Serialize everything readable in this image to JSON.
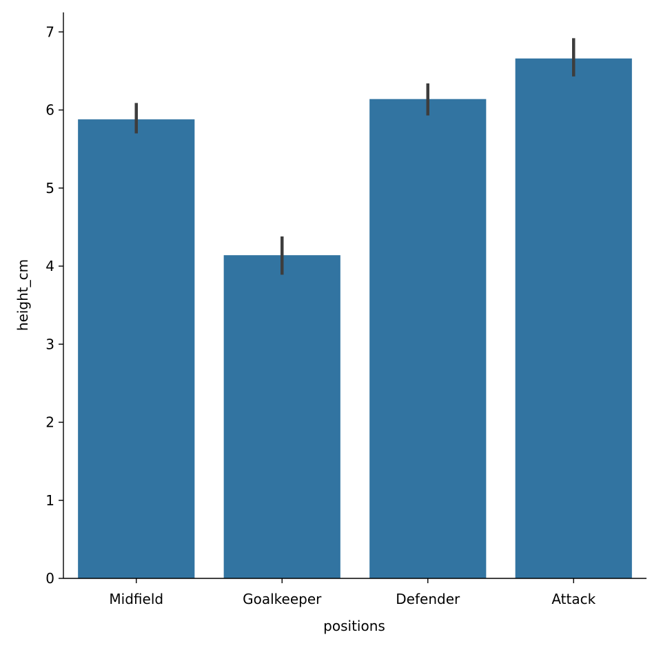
{
  "chart_data": {
    "type": "bar",
    "categories": [
      "Midfield",
      "Goalkeeper",
      "Defender",
      "Attack"
    ],
    "values": [
      5.88,
      4.14,
      6.14,
      6.66
    ],
    "error_low": [
      5.7,
      3.89,
      5.93,
      6.43
    ],
    "error_high": [
      6.09,
      4.38,
      6.34,
      6.92
    ],
    "xlabel": "positions",
    "ylabel": "height_cm",
    "ylim": [
      0,
      7.25
    ],
    "yticks": [
      0,
      1,
      2,
      3,
      4,
      5,
      6,
      7
    ],
    "grid": false,
    "legend": "none",
    "colors": {
      "bar": "#3274a1",
      "error": "#3d3d3d",
      "axis": "#000000"
    }
  }
}
